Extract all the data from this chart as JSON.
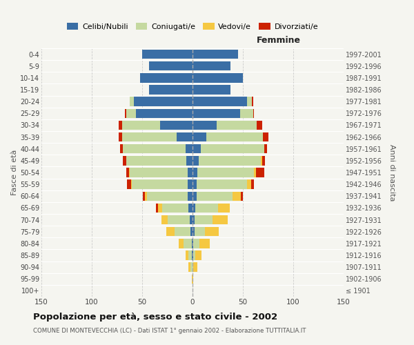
{
  "age_groups": [
    "100+",
    "95-99",
    "90-94",
    "85-89",
    "80-84",
    "75-79",
    "70-74",
    "65-69",
    "60-64",
    "55-59",
    "50-54",
    "45-49",
    "40-44",
    "35-39",
    "30-34",
    "25-29",
    "20-24",
    "15-19",
    "10-14",
    "5-9",
    "0-4"
  ],
  "birth_years": [
    "≤ 1901",
    "1902-1906",
    "1907-1911",
    "1912-1916",
    "1917-1921",
    "1922-1926",
    "1927-1931",
    "1932-1936",
    "1937-1941",
    "1942-1946",
    "1947-1951",
    "1952-1956",
    "1957-1961",
    "1962-1966",
    "1967-1971",
    "1972-1976",
    "1977-1981",
    "1982-1986",
    "1987-1991",
    "1992-1996",
    "1997-2001"
  ],
  "male": {
    "celibi": [
      0,
      0,
      0,
      1,
      1,
      2,
      3,
      4,
      5,
      5,
      5,
      6,
      7,
      16,
      32,
      56,
      58,
      43,
      52,
      43,
      50
    ],
    "coniugati": [
      0,
      0,
      2,
      3,
      8,
      16,
      22,
      26,
      40,
      55,
      57,
      60,
      62,
      54,
      38,
      10,
      4,
      0,
      0,
      0,
      0
    ],
    "vedovi": [
      0,
      1,
      2,
      3,
      5,
      8,
      6,
      4,
      2,
      1,
      1,
      0,
      0,
      0,
      0,
      0,
      0,
      0,
      0,
      0,
      0
    ],
    "divorziati": [
      0,
      0,
      0,
      0,
      0,
      0,
      0,
      2,
      2,
      4,
      3,
      3,
      3,
      3,
      3,
      1,
      0,
      0,
      0,
      0,
      0
    ]
  },
  "female": {
    "nubili": [
      0,
      0,
      0,
      1,
      1,
      2,
      2,
      3,
      4,
      4,
      5,
      6,
      8,
      14,
      24,
      47,
      54,
      38,
      50,
      38,
      45
    ],
    "coniugate": [
      0,
      0,
      1,
      2,
      6,
      10,
      18,
      22,
      36,
      50,
      56,
      62,
      63,
      56,
      40,
      13,
      5,
      0,
      0,
      0,
      0
    ],
    "vedove": [
      0,
      1,
      4,
      6,
      10,
      14,
      15,
      12,
      8,
      4,
      2,
      1,
      0,
      0,
      0,
      0,
      0,
      0,
      0,
      0,
      0
    ],
    "divorziate": [
      0,
      0,
      0,
      0,
      0,
      0,
      0,
      0,
      2,
      3,
      8,
      3,
      3,
      5,
      5,
      1,
      1,
      0,
      0,
      0,
      0
    ]
  },
  "colors": {
    "celibi": "#3a6ea5",
    "coniugati": "#c5d9a0",
    "vedovi": "#f5c842",
    "divorziati": "#cc2200"
  },
  "xlim": 150,
  "title": "Popolazione per età, sesso e stato civile - 2002",
  "subtitle": "COMUNE DI MONTEVECCHIA (LC) - Dati ISTAT 1° gennaio 2002 - Elaborazione TUTTITALIA.IT",
  "ylabel_left": "Fasce di età",
  "ylabel_right": "Anni di nascita",
  "header_right": "Femmine",
  "legend_labels": [
    "Celibi/Nubili",
    "Coniugati/e",
    "Vedovi/e",
    "Divorziati/e"
  ],
  "bg_color": "#f5f5f0",
  "grid_color": "#cccccc"
}
